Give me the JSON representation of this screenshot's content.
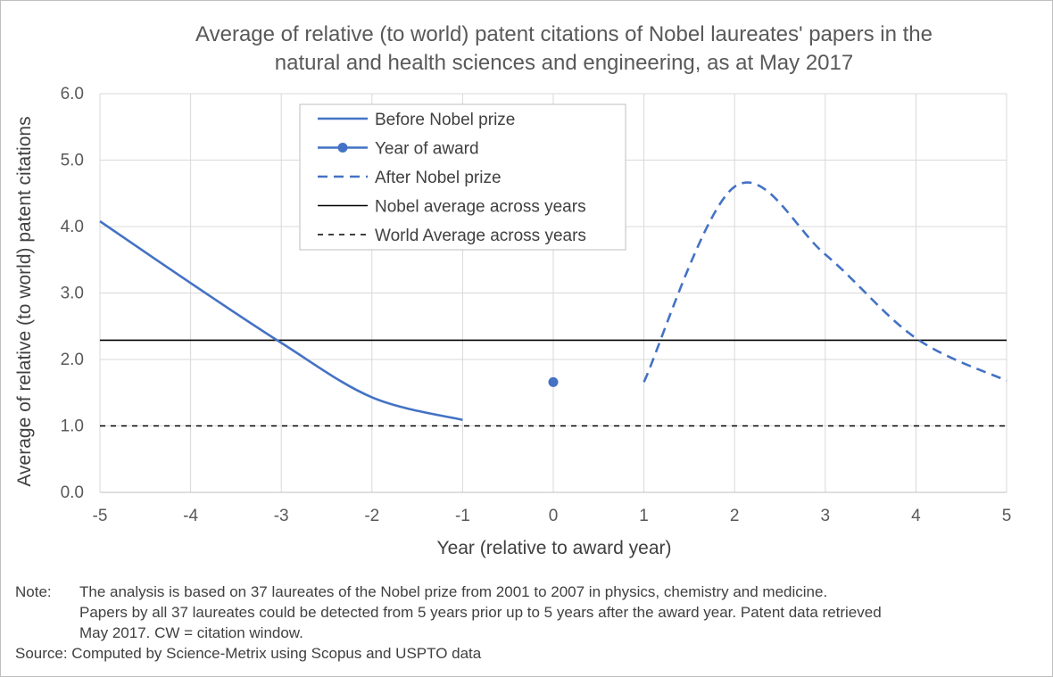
{
  "chart_data": {
    "type": "line",
    "title": "Average of relative (to world) patent citations of Nobel laureates' papers in the natural and health sciences and engineering, as at May 2017",
    "title_lines": [
      "Average of relative (to world) patent citations of Nobel laureates' papers in the",
      "natural and health sciences and engineering, as at May 2017"
    ],
    "xlabel": "Year (relative to award year)",
    "ylabel": "Average of relative (to world) patent citations",
    "xlim": [
      -5,
      5
    ],
    "ylim": [
      0,
      6
    ],
    "x_ticks": [
      -5,
      -4,
      -3,
      -2,
      -1,
      0,
      1,
      2,
      3,
      4,
      5
    ],
    "y_ticks": [
      "0.0",
      "1.0",
      "2.0",
      "3.0",
      "4.0",
      "5.0",
      "6.0"
    ],
    "grid": "vertical and horizontal",
    "legend_position": "top-center",
    "series": [
      {
        "name": "Before Nobel prize",
        "style": "solid",
        "color": "#4472c4",
        "x": [
          -5,
          -4,
          -3,
          -2,
          -1
        ],
        "y": [
          4.08,
          3.15,
          2.25,
          1.43,
          1.09
        ]
      },
      {
        "name": "Year of award",
        "style": "marker",
        "color": "#4472c4",
        "x": [
          0
        ],
        "y": [
          1.66
        ]
      },
      {
        "name": "After Nobel prize",
        "style": "dashed",
        "color": "#4472c4",
        "x": [
          1,
          2,
          3,
          4,
          5
        ],
        "y": [
          1.66,
          4.6,
          3.58,
          2.32,
          1.68
        ]
      },
      {
        "name": "Nobel average across years",
        "style": "solid",
        "color": "#000000",
        "constant": 2.29
      },
      {
        "name": "World Average across years",
        "style": "dashed",
        "color": "#000000",
        "constant": 1.0
      }
    ]
  },
  "notes": {
    "note_label": "Note:",
    "note_line1": "The analysis is based on 37 laureates of the Nobel prize from 2001 to 2007 in physics, chemistry and medicine.",
    "note_line2": "Papers by all 37 laureates could be detected from 5 years prior up to 5 years after the award year.  Patent data retrieved",
    "note_line3": "May 2017. CW = citation window.",
    "source": "Source: Computed by Science-Metrix using Scopus and USPTO data"
  }
}
